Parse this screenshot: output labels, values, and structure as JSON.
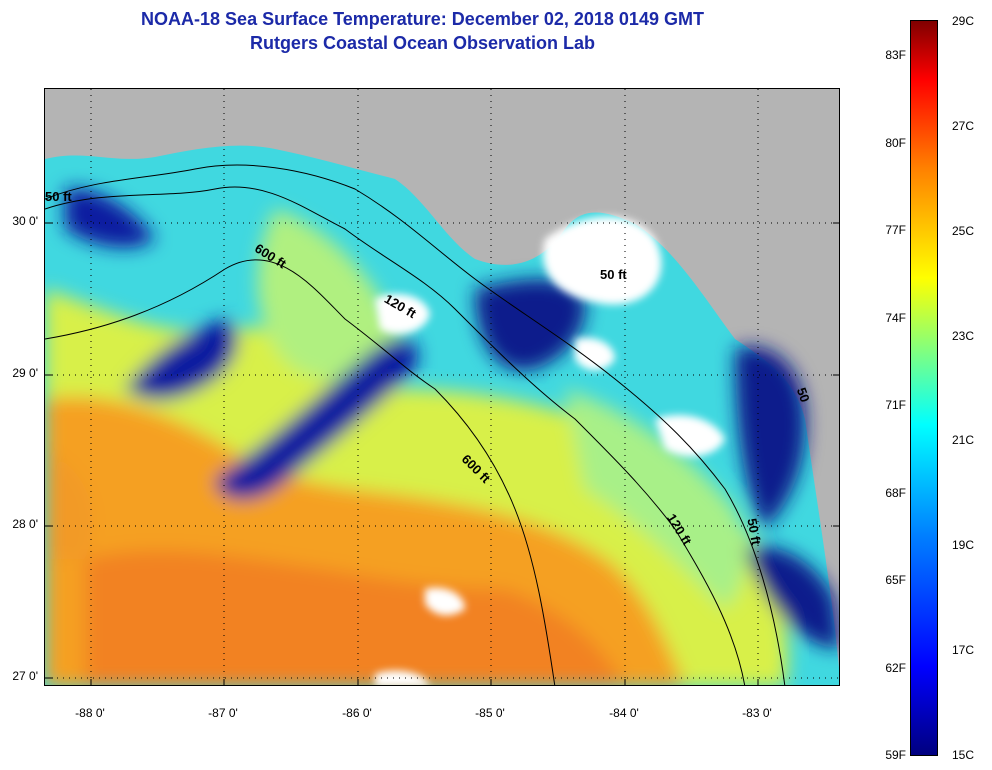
{
  "header": {
    "title": "NOAA-18 Sea Surface Temperature:  December 02, 2018 0149 GMT",
    "subtitle": "Rutgers Coastal Ocean Observation Lab"
  },
  "map": {
    "lat_labels": [
      "30 0'",
      "29 0'",
      "28 0'",
      "27 0'"
    ],
    "lon_labels": [
      "-88 0'",
      "-87 0'",
      "-86 0'",
      "-85 0'",
      "-84 0'",
      "-83 0'"
    ],
    "contour_labels": [
      {
        "text": "600 ft"
      },
      {
        "text": "120 ft"
      },
      {
        "text": "50 ft"
      },
      {
        "text": "600 ft"
      },
      {
        "text": "120 ft"
      },
      {
        "text": "50 ft"
      },
      {
        "text": "50 ft"
      },
      {
        "text": "50"
      }
    ],
    "colors": {
      "land": "#b4b4b4",
      "cloud": "#ffffff",
      "cold": "#0a1a8c",
      "cyan": "#30e0e8",
      "yellow": "#e8f040",
      "orange": "#f5a020"
    }
  },
  "colorbar": {
    "fahrenheit": [
      "83F",
      "80F",
      "77F",
      "74F",
      "71F",
      "68F",
      "65F",
      "62F",
      "59F"
    ],
    "celsius": [
      "29C",
      "27C",
      "25C",
      "23C",
      "21C",
      "19C",
      "17C",
      "15C"
    ],
    "min_c": 15,
    "max_c": 29
  }
}
